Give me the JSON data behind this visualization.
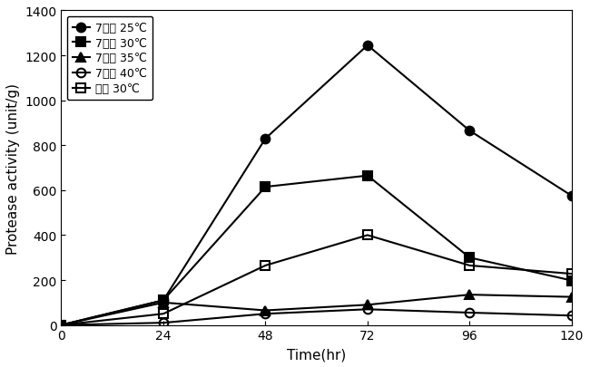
{
  "x": [
    0,
    24,
    48,
    72,
    96,
    120
  ],
  "series": [
    {
      "label": "7분도 25℃",
      "values": [
        0,
        110,
        830,
        1245,
        865,
        575
      ],
      "marker": "o",
      "fillstyle": "full",
      "color": "black",
      "linestyle": "-"
    },
    {
      "label": "7분도 30℃",
      "values": [
        0,
        110,
        615,
        665,
        300,
        198
      ],
      "marker": "s",
      "fillstyle": "full",
      "color": "black",
      "linestyle": "-"
    },
    {
      "label": "7분도 35℃",
      "values": [
        0,
        100,
        65,
        90,
        135,
        125
      ],
      "marker": "^",
      "fillstyle": "full",
      "color": "black",
      "linestyle": "-"
    },
    {
      "label": "7분도 40℃",
      "values": [
        0,
        10,
        50,
        70,
        55,
        42
      ],
      "marker": "o",
      "fillstyle": "none",
      "color": "black",
      "linestyle": "-"
    },
    {
      "label": "백미 30℃",
      "values": [
        0,
        50,
        265,
        400,
        265,
        228
      ],
      "marker": "s",
      "fillstyle": "none",
      "color": "black",
      "linestyle": "-"
    }
  ],
  "xlabel": "Time(hr)",
  "ylabel": "Protease activity (unit/g)",
  "xlim": [
    0,
    120
  ],
  "ylim": [
    0,
    1400
  ],
  "yticks": [
    0,
    200,
    400,
    600,
    800,
    1000,
    1200,
    1400
  ],
  "xticks": [
    0,
    24,
    48,
    72,
    96,
    120
  ],
  "legend_loc": "upper left",
  "background_color": "#ffffff"
}
